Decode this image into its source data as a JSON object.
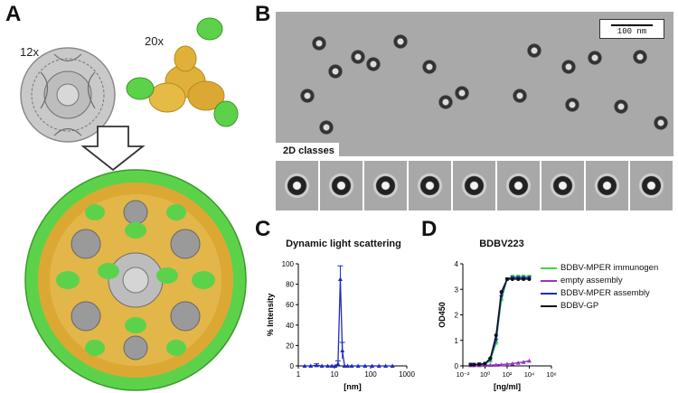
{
  "panels": {
    "a": "A",
    "b": "B",
    "c": "C",
    "d": "D"
  },
  "panel_a": {
    "mult_12": "12x",
    "mult_20": "20x"
  },
  "panel_b": {
    "scale_label": "100 nm",
    "classes_label": "2D classes"
  },
  "colors": {
    "green": "#5cd24a",
    "gold": "#e0b13a",
    "gray": "#9a9a9a",
    "blue": "#1f2bbf",
    "purple": "#9b30c8",
    "black": "#111111"
  },
  "chart_data": [
    {
      "type": "line",
      "title": "Dynamic light scattering",
      "xlabel": "[nm]",
      "ylabel": "% Intensity",
      "xscale": "log",
      "xlim": [
        1,
        1000
      ],
      "ylim": [
        0,
        100
      ],
      "xticks": [
        "1",
        "10",
        "100",
        "1000"
      ],
      "yticks": [
        "0",
        "20",
        "40",
        "60",
        "80",
        "100"
      ],
      "series": [
        {
          "x": [
            1.5,
            2.2,
            3.2,
            4.5,
            6.5,
            8.5,
            10.5,
            12.5,
            14.5,
            16.5,
            19,
            23,
            30,
            45,
            70,
            110,
            170,
            260,
            400
          ],
          "y": [
            0,
            0,
            0.5,
            0,
            0,
            0,
            0,
            2,
            85,
            15,
            0,
            0,
            0,
            0,
            0,
            0,
            0,
            0,
            0
          ],
          "err": [
            0,
            0,
            1.5,
            0,
            0,
            0,
            0,
            3,
            13,
            8,
            0,
            0,
            0,
            0,
            0,
            0,
            0,
            0,
            0
          ],
          "color": "#1f2bbf"
        }
      ]
    },
    {
      "type": "line",
      "title": "BDBV223",
      "xlabel": "[ng/ml]",
      "ylabel": "OD450",
      "xscale": "log",
      "xlim": [
        0.01,
        1000000
      ],
      "ylim": [
        0,
        4
      ],
      "xticks": [
        "10⁻²",
        "10⁰",
        "10²",
        "10⁴",
        "10⁶"
      ],
      "yticks": [
        "0",
        "1",
        "2",
        "3",
        "4"
      ],
      "legend_position": "right",
      "series": [
        {
          "name": "BDBV-MPER immunogen",
          "color": "#3ddc3d",
          "marker": "square",
          "x": [
            0.05,
            0.1,
            0.3,
            1,
            3,
            10,
            30,
            100,
            300,
            1000,
            3000,
            10000
          ],
          "y": [
            0.05,
            0.05,
            0.06,
            0.08,
            0.2,
            0.9,
            2.6,
            3.4,
            3.5,
            3.5,
            3.5,
            3.5
          ]
        },
        {
          "name": "empty assembly",
          "color": "#9b30c8",
          "marker": "triangle",
          "x": [
            0.05,
            0.1,
            0.3,
            1,
            3,
            10,
            30,
            100,
            300,
            1000,
            3000,
            10000
          ],
          "y": [
            0.02,
            0.02,
            0.02,
            0.03,
            0.03,
            0.04,
            0.05,
            0.07,
            0.09,
            0.12,
            0.15,
            0.2
          ]
        },
        {
          "name": "BDBV-MPER assembly",
          "color": "#1f2bbf",
          "marker": "triangle-down",
          "x": [
            0.05,
            0.1,
            0.3,
            1,
            3,
            10,
            30,
            100,
            300,
            1000,
            3000,
            10000
          ],
          "y": [
            0.05,
            0.05,
            0.06,
            0.08,
            0.25,
            1.0,
            2.7,
            3.4,
            3.45,
            3.45,
            3.45,
            3.45
          ]
        },
        {
          "name": "BDBV-GP",
          "color": "#111111",
          "marker": "circle",
          "x": [
            0.05,
            0.1,
            0.3,
            1,
            3,
            10,
            30,
            100,
            300,
            1000,
            3000,
            10000
          ],
          "y": [
            0.05,
            0.05,
            0.06,
            0.09,
            0.3,
            1.2,
            2.9,
            3.4,
            3.4,
            3.4,
            3.4,
            3.4
          ]
        }
      ]
    }
  ]
}
